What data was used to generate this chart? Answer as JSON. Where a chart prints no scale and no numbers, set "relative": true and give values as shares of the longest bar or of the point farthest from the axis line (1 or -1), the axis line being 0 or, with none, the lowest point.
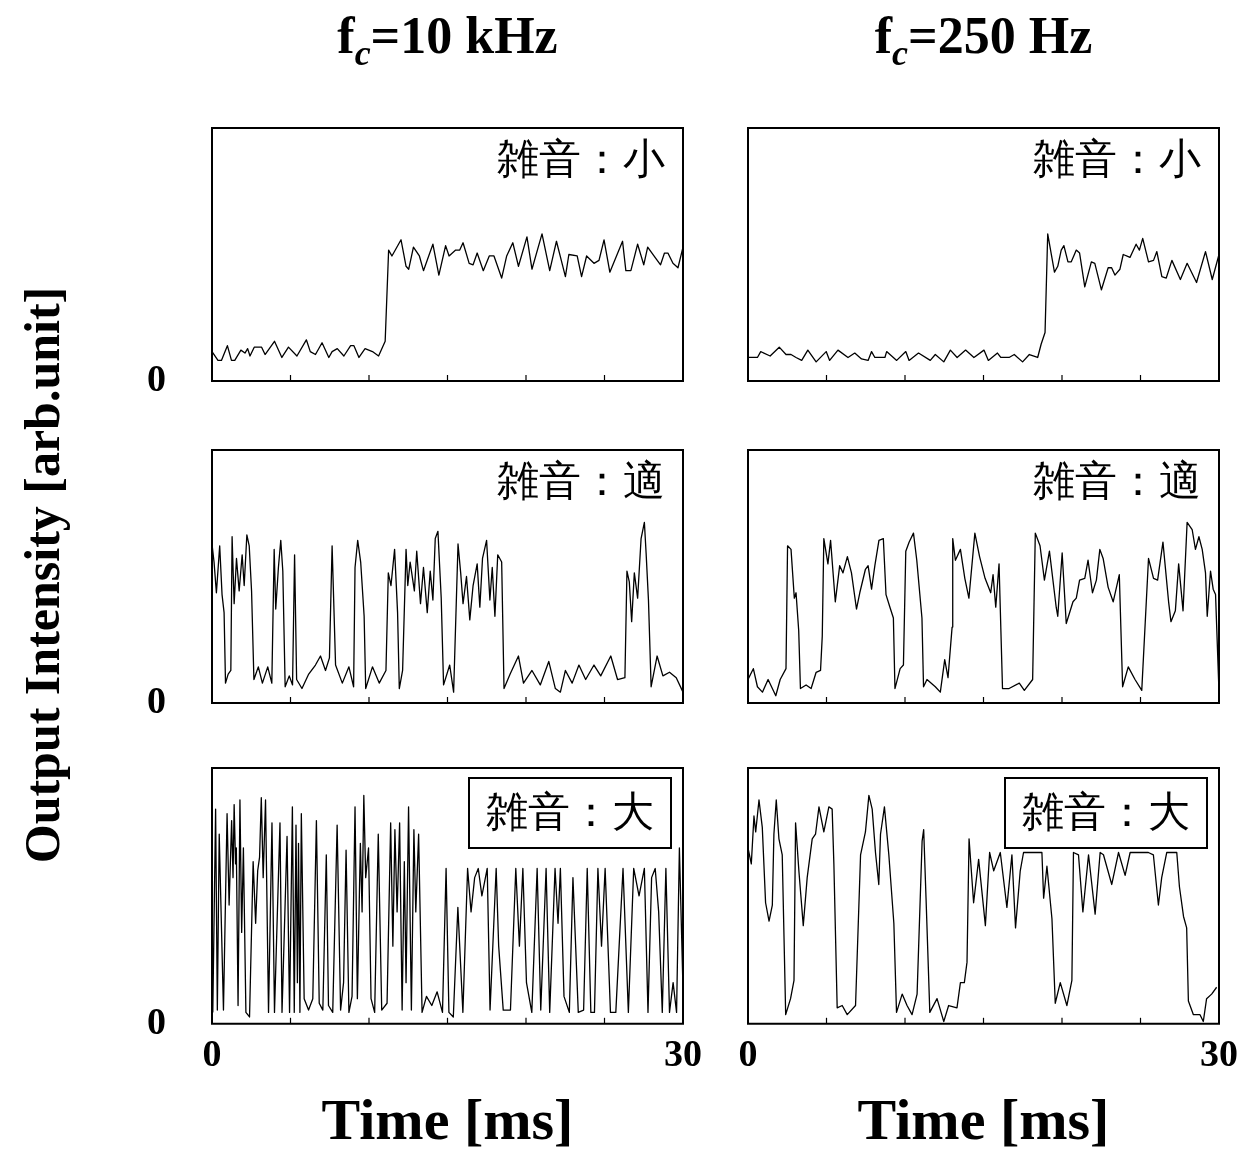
{
  "chart_data": [
    {
      "type": "line",
      "title": "f$_{c}$=10 kHz",
      "relative": true,
      "color": "#000000",
      "annotations": [
        "雑音：小",
        "0"
      ],
      "xlim": [
        0,
        30
      ],
      "xticks": [
        {
          "value": 5,
          "label": null
        },
        {
          "value": 10,
          "label": null
        },
        {
          "value": 15,
          "label": null
        },
        {
          "value": 20,
          "label": null
        },
        {
          "value": 25,
          "label": null
        }
      ],
      "tick_labels": false,
      "x": [
        0,
        0.38,
        0.6,
        0.98,
        1.24,
        1.45,
        1.84,
        2.1,
        2.27,
        2.42,
        2.69,
        3.16,
        3.38,
        3.98,
        4.45,
        4.87,
        5.41,
        6.01,
        6.26,
        6.59,
        7.01,
        7.44,
        7.65,
        7.98,
        8.4,
        8.83,
        9.04,
        9.36,
        9.75,
        10.22,
        10.61,
        11.03,
        11.25,
        11.46,
        12.04,
        12.36,
        12.53,
        12.83,
        13.21,
        13.47,
        14.07,
        14.45,
        14.88,
        15.1,
        15.52,
        15.78,
        15.99,
        16.38,
        16.63,
        16.89,
        17.28,
        17.66,
        17.96,
        18.45,
        18.77,
        19.16,
        19.52,
        20.06,
        20.38,
        21.02,
        21.51,
        21.94,
        22.51,
        22.73,
        23.26,
        23.54,
        23.86,
        24.33,
        24.65,
        24.97,
        25.34,
        26.15,
        26.36,
        26.68,
        27.11,
        27.5,
        27.75,
        28.29,
        28.57,
        28.82,
        29.04,
        29.36,
        29.68,
        30
      ],
      "values": [
        0.2,
        0.14,
        0.14,
        0.24,
        0.14,
        0.14,
        0.21,
        0.19,
        0.22,
        0.17,
        0.23,
        0.23,
        0.18,
        0.27,
        0.16,
        0.23,
        0.17,
        0.28,
        0.2,
        0.18,
        0.26,
        0.16,
        0.2,
        0.22,
        0.17,
        0.24,
        0.24,
        0.16,
        0.22,
        0.2,
        0.17,
        0.27,
        0.89,
        0.85,
        0.96,
        0.78,
        0.76,
        0.91,
        0.85,
        0.75,
        0.93,
        0.72,
        0.92,
        0.85,
        0.89,
        0.89,
        0.94,
        0.8,
        0.79,
        0.87,
        0.75,
        0.85,
        0.85,
        0.7,
        0.85,
        0.94,
        0.78,
        0.98,
        0.76,
        1,
        0.75,
        0.95,
        0.71,
        0.86,
        0.85,
        0.71,
        0.85,
        0.8,
        0.82,
        0.96,
        0.74,
        0.95,
        0.75,
        0.75,
        0.93,
        0.79,
        0.91,
        0.83,
        0.79,
        0.87,
        0.87,
        0.8,
        0.77,
        0.91
      ]
    },
    {
      "type": "line",
      "title": "f$_{c}$=250 Hz",
      "relative": true,
      "color": "#000000",
      "annotations": [
        "雑音：小"
      ],
      "xlim": [
        0,
        30
      ],
      "xticks": [
        {
          "value": 5,
          "label": null
        },
        {
          "value": 10,
          "label": null
        },
        {
          "value": 15,
          "label": null
        },
        {
          "value": 20,
          "label": null
        },
        {
          "value": 25,
          "label": null
        }
      ],
      "tick_labels": false,
      "x": [
        0,
        0.38,
        0.6,
        0.81,
        1.41,
        1.99,
        2.42,
        2.74,
        3.06,
        3.42,
        3.81,
        4.34,
        4.98,
        5.2,
        5.73,
        6.37,
        6.8,
        7.23,
        7.65,
        7.87,
        8.08,
        8.72,
        8.83,
        9.47,
        10.05,
        10.26,
        10.86,
        11.61,
        11.93,
        12.47,
        12.89,
        13.32,
        13.86,
        14.39,
        15.03,
        15.31,
        15.89,
        16.1,
        16.63,
        16.96,
        17.49,
        17.92,
        18.45,
        18.67,
        18.92,
        19.09,
        19.52,
        19.73,
        19.95,
        20.12,
        20.38,
        20.59,
        20.91,
        21.12,
        21.45,
        21.87,
        22.09,
        22.51,
        22.94,
        23.16,
        23.37,
        23.69,
        23.9,
        24.33,
        24.72,
        24.93,
        25.14,
        25.51,
        25.83,
        26.04,
        26.36,
        26.64,
        27.0,
        27.54,
        27.97,
        28.57,
        29.14,
        29.57,
        30
      ],
      "values": [
        0.16,
        0.16,
        0.16,
        0.2,
        0.17,
        0.23,
        0.18,
        0.18,
        0.16,
        0.14,
        0.21,
        0.13,
        0.2,
        0.14,
        0.21,
        0.16,
        0.19,
        0.15,
        0.14,
        0.2,
        0.16,
        0.16,
        0.2,
        0.14,
        0.2,
        0.14,
        0.19,
        0.14,
        0.18,
        0.13,
        0.21,
        0.16,
        0.21,
        0.16,
        0.21,
        0.14,
        0.19,
        0.16,
        0.16,
        0.18,
        0.13,
        0.18,
        0.16,
        0.25,
        0.33,
        1,
        0.74,
        0.78,
        0.89,
        0.92,
        0.81,
        0.81,
        0.89,
        0.87,
        0.64,
        0.81,
        0.8,
        0.62,
        0.77,
        0.77,
        0.72,
        0.76,
        0.86,
        0.84,
        0.93,
        0.89,
        0.97,
        0.81,
        0.82,
        0.88,
        0.71,
        0.7,
        0.82,
        0.69,
        0.8,
        0.67,
        0.88,
        0.69,
        0.86
      ]
    },
    {
      "type": "line",
      "relative": true,
      "ylabel": "Output Intensity [arb.unit]",
      "color": "#000000",
      "annotations": [
        "雑音：適",
        "0"
      ],
      "xlim": [
        0,
        30
      ],
      "xticks": [
        {
          "value": 5,
          "label": null
        },
        {
          "value": 10,
          "label": null
        },
        {
          "value": 15,
          "label": null
        },
        {
          "value": 20,
          "label": null
        },
        {
          "value": 25,
          "label": null
        }
      ],
      "tick_labels": false,
      "x": [
        0,
        0.13,
        0.28,
        0.49,
        0.64,
        0.77,
        0.86,
        1.03,
        1.2,
        1.28,
        1.41,
        1.56,
        1.73,
        1.92,
        2.05,
        2.22,
        2.37,
        2.52,
        2.67,
        2.95,
        3.21,
        3.55,
        3.81,
        3.96,
        4.06,
        4.23,
        4.38,
        4.51,
        4.66,
        4.92,
        5.13,
        5.26,
        5.39,
        5.73,
        6.16,
        6.59,
        6.91,
        7.23,
        7.48,
        7.65,
        7.87,
        8.3,
        8.72,
        9.02,
        9.11,
        9.28,
        9.47,
        9.69,
        9.79,
        10.22,
        10.65,
        11.08,
        11.23,
        11.4,
        11.63,
        11.82,
        11.93,
        12.14,
        12.36,
        12.47,
        12.62,
        12.89,
        13.04,
        13.28,
        13.47,
        13.71,
        13.9,
        14.07,
        14.22,
        14.39,
        14.6,
        14.75,
        15.14,
        15.39,
        15.67,
        15.84,
        15.99,
        16.21,
        16.42,
        16.63,
        16.89,
        17.06,
        17.23,
        17.49,
        17.7,
        17.85,
        18.02,
        18.2,
        18.45,
        18.6,
        18.99,
        19.52,
        19.84,
        20.38,
        20.91,
        21.45,
        21.87,
        22.19,
        22.51,
        22.94,
        23.37,
        23.8,
        24.33,
        24.76,
        25.4,
        25.83,
        26.3,
        26.43,
        26.58,
        26.73,
        26.9,
        27.11,
        27.33,
        27.54,
        27.65,
        27.8,
        27.97,
        28.35,
        28.72,
        29.14,
        29.57,
        30
      ],
      "values": [
        0.88,
        0.78,
        0.61,
        0.87,
        0.6,
        0.5,
        0.11,
        0.16,
        0.18,
        0.92,
        0.55,
        0.8,
        0.62,
        0.82,
        0.65,
        0.93,
        0.87,
        0.62,
        0.13,
        0.2,
        0.11,
        0.2,
        0.11,
        0.85,
        0.52,
        0.75,
        0.9,
        0.73,
        0.09,
        0.15,
        0.1,
        0.82,
        0.13,
        0.08,
        0.16,
        0.21,
        0.26,
        0.18,
        0.25,
        0.87,
        0.21,
        0.11,
        0.2,
        0.09,
        0.75,
        0.9,
        0.78,
        0.48,
        0.08,
        0.2,
        0.11,
        0.18,
        0.72,
        0.65,
        0.85,
        0.5,
        0.08,
        0.18,
        0.85,
        0.65,
        0.78,
        0.62,
        0.84,
        0.55,
        0.75,
        0.5,
        0.73,
        0.57,
        0.91,
        0.95,
        0.58,
        0.1,
        0.21,
        0.06,
        0.88,
        0.72,
        0.55,
        0.7,
        0.46,
        0.65,
        0.77,
        0.53,
        0.8,
        0.9,
        0.57,
        0.75,
        0.48,
        0.82,
        0.78,
        0.08,
        0.16,
        0.26,
        0.11,
        0.18,
        0.1,
        0.23,
        0.08,
        0.06,
        0.18,
        0.11,
        0.21,
        0.13,
        0.21,
        0.15,
        0.26,
        0.13,
        0.14,
        0.73,
        0.67,
        0.45,
        0.72,
        0.58,
        0.91,
        1,
        0.83,
        0.57,
        0.09,
        0.26,
        0.15,
        0.17,
        0.14,
        0.06
      ]
    },
    {
      "type": "line",
      "relative": true,
      "color": "#000000",
      "annotations": [
        "雑音：適"
      ],
      "xlim": [
        0,
        30
      ],
      "xticks": [
        {
          "value": 5,
          "label": null
        },
        {
          "value": 10,
          "label": null
        },
        {
          "value": 15,
          "label": null
        },
        {
          "value": 20,
          "label": null
        },
        {
          "value": 25,
          "label": null
        }
      ],
      "tick_labels": false,
      "x": [
        0,
        0.34,
        0.6,
        0.92,
        1.28,
        1.77,
        2.05,
        2.42,
        2.52,
        2.74,
        2.95,
        3.06,
        3.23,
        3.34,
        3.7,
        4.02,
        4.34,
        4.62,
        4.73,
        4.83,
        5.09,
        5.26,
        5.56,
        5.84,
        6.05,
        6.33,
        6.59,
        6.91,
        7.12,
        7.48,
        7.65,
        7.87,
        8.08,
        8.34,
        8.62,
        8.79,
        9.04,
        9.26,
        9.36,
        9.69,
        9.9,
        10.05,
        10.26,
        10.54,
        10.75,
        11.08,
        11.18,
        11.4,
        11.93,
        12.25,
        12.53,
        12.74,
        13.0,
        13.04,
        13.21,
        13.53,
        13.81,
        14.07,
        14.45,
        14.75,
        15.1,
        15.46,
        15.61,
        15.78,
        15.99,
        16.21,
        16.63,
        17.28,
        17.6,
        18.13,
        18.3,
        18.6,
        18.88,
        19.2,
        19.63,
        19.73,
        20.01,
        20.27,
        20.7,
        20.91,
        21.12,
        21.45,
        21.66,
        21.94,
        22.19,
        22.41,
        22.62,
        22.94,
        23.26,
        23.65,
        23.86,
        24.22,
        24.65,
        25.08,
        25.51,
        25.83,
        26.09,
        26.43,
        26.79,
        26.94,
        27.22,
        27.43,
        27.71,
        27.97,
        28.29,
        28.5,
        28.72,
        28.93,
        29.14,
        29.25,
        29.46,
        29.63,
        29.78,
        30
      ],
      "values": [
        0.13,
        0.19,
        0.09,
        0.06,
        0.13,
        0.04,
        0.13,
        0.19,
        0.87,
        0.85,
        0.58,
        0.61,
        0.4,
        0.08,
        0.1,
        0.08,
        0.17,
        0.18,
        0.37,
        0.91,
        0.77,
        0.9,
        0.56,
        0.76,
        0.72,
        0.81,
        0.72,
        0.52,
        0.61,
        0.74,
        0.76,
        0.63,
        0.76,
        0.9,
        0.91,
        0.6,
        0.53,
        0.47,
        0.08,
        0.19,
        0.21,
        0.84,
        0.89,
        0.94,
        0.79,
        0.47,
        0.09,
        0.13,
        0.09,
        0.06,
        0.24,
        0.14,
        0.42,
        0.91,
        0.79,
        0.85,
        0.69,
        0.58,
        0.94,
        0.81,
        0.69,
        0.61,
        0.71,
        0.53,
        0.77,
        0.08,
        0.08,
        0.11,
        0.07,
        0.13,
        0.94,
        0.87,
        0.68,
        0.84,
        0.53,
        0.48,
        0.83,
        0.44,
        0.56,
        0.58,
        0.68,
        0.69,
        0.79,
        0.61,
        0.68,
        0.85,
        0.8,
        0.64,
        0.56,
        0.71,
        0.09,
        0.2,
        0.13,
        0.07,
        0.8,
        0.69,
        0.68,
        0.89,
        0.56,
        0.45,
        0.51,
        0.77,
        0.51,
        1,
        0.96,
        0.85,
        0.92,
        0.85,
        0.72,
        0.48,
        0.73,
        0.63,
        0.6,
        0.06
      ]
    },
    {
      "type": "line",
      "relative": true,
      "xlabel": "Time [ms]",
      "color": "#000000",
      "annotations": [
        "雑音：大",
        "0"
      ],
      "xlim": [
        0,
        30
      ],
      "xticks": [
        {
          "value": 0,
          "label": "0"
        },
        {
          "value": 5,
          "label": null
        },
        {
          "value": 10,
          "label": null
        },
        {
          "value": 15,
          "label": null
        },
        {
          "value": 20,
          "label": null
        },
        {
          "value": 25,
          "label": null
        },
        {
          "value": 30,
          "label": "30"
        }
      ],
      "tick_labels": "x",
      "x": [
        0.05,
        0.23,
        0.34,
        0.46,
        0.73,
        0.96,
        1.09,
        1.25,
        1.34,
        1.41,
        1.5,
        1.55,
        1.66,
        1.78,
        1.89,
        2.0,
        2.16,
        2.39,
        2.62,
        2.78,
        2.91,
        3.03,
        3.14,
        3.26,
        3.41,
        3.6,
        3.82,
        3.98,
        4.33,
        4.46,
        4.78,
        4.94,
        5.12,
        5.24,
        5.35,
        5.44,
        5.51,
        5.6,
        5.69,
        5.87,
        6.15,
        6.42,
        6.65,
        6.83,
        7.06,
        7.28,
        7.42,
        7.69,
        7.97,
        8.19,
        8.38,
        8.54,
        8.72,
        8.92,
        9.11,
        9.26,
        9.45,
        9.56,
        9.67,
        9.79,
        9.97,
        10.13,
        10.36,
        10.59,
        10.81,
        11.15,
        11.38,
        11.52,
        11.65,
        11.79,
        11.95,
        12.11,
        12.25,
        12.36,
        12.52,
        12.7,
        12.86,
        12.98,
        13.16,
        13.38,
        13.66,
        14.0,
        14.34,
        14.68,
        14.91,
        15.09,
        15.37,
        15.66,
        15.98,
        16.28,
        16.5,
        16.73,
        16.96,
        17.19,
        17.53,
        17.71,
        18.1,
        18.26,
        18.55,
        19.01,
        19.35,
        19.58,
        19.8,
        20.03,
        20.37,
        20.71,
        20.94,
        21.28,
        21.51,
        21.85,
        22.04,
        22.19,
        22.42,
        22.76,
        22.99,
        23.33,
        23.67,
        23.9,
        24.13,
        24.36,
        24.58,
        24.81,
        25.04,
        25.38,
        25.72,
        26.18,
        26.52,
        26.86,
        27.2,
        27.54,
        27.77,
        28.0,
        28.23,
        28.45,
        28.68,
        28.91,
        29.14,
        29.37,
        29.59,
        29.77,
        30
      ],
      "values": [
        0.05,
        0.94,
        0.06,
        0.83,
        0.06,
        0.92,
        0.52,
        0.89,
        0.64,
        0.96,
        0.7,
        0.77,
        0.08,
        0.98,
        0.4,
        0.77,
        0.05,
        0.03,
        0.71,
        0.44,
        0.67,
        0.73,
        0.99,
        0.64,
        0.98,
        0.05,
        0.88,
        0.05,
        0.88,
        0.05,
        0.82,
        0.05,
        0.95,
        0.05,
        0.87,
        0.18,
        0.79,
        0.05,
        0.92,
        0.11,
        0.06,
        0.11,
        0.89,
        0.09,
        0.06,
        0.74,
        0.08,
        0.05,
        0.87,
        0.06,
        0.18,
        0.76,
        0.05,
        0.12,
        0.95,
        0.11,
        0.79,
        0.49,
        1,
        0.64,
        0.77,
        0.11,
        0.05,
        0.83,
        0.06,
        0.09,
        0.88,
        0.34,
        0.85,
        0.49,
        0.88,
        0.06,
        0.71,
        0.18,
        0.95,
        0.06,
        0.85,
        0.49,
        0.83,
        0.05,
        0.12,
        0.08,
        0.14,
        0.05,
        0.68,
        0.05,
        0.03,
        0.51,
        0.05,
        0.68,
        0.49,
        0.64,
        0.68,
        0.56,
        0.68,
        0.06,
        0.68,
        0.34,
        0.06,
        0.06,
        0.68,
        0.34,
        0.68,
        0.18,
        0.05,
        0.68,
        0.06,
        0.68,
        0.05,
        0.68,
        0.44,
        0.68,
        0.12,
        0.05,
        0.64,
        0.05,
        0.06,
        0.68,
        0.05,
        0.05,
        0.68,
        0.34,
        0.68,
        0.05,
        0.05,
        0.68,
        0.05,
        0.68,
        0.56,
        0.68,
        0.05,
        0.64,
        0.68,
        0.49,
        0.05,
        0.68,
        0.05,
        0.18,
        0.05,
        0.77,
        0.15
      ]
    },
    {
      "type": "line",
      "relative": true,
      "xlabel": "Time [ms]",
      "color": "#000000",
      "annotations": [
        "雑音：大"
      ],
      "xlim": [
        0,
        30
      ],
      "xticks": [
        {
          "value": 0,
          "label": "0"
        },
        {
          "value": 5,
          "label": null
        },
        {
          "value": 10,
          "label": null
        },
        {
          "value": 15,
          "label": null
        },
        {
          "value": 20,
          "label": null
        },
        {
          "value": 25,
          "label": null
        },
        {
          "value": 30,
          "label": "30"
        }
      ],
      "tick_labels": "x",
      "x": [
        0,
        0.21,
        0.38,
        0.49,
        0.7,
        0.91,
        1.12,
        1.34,
        1.55,
        1.65,
        1.8,
        1.97,
        2.18,
        2.4,
        2.71,
        2.93,
        3.03,
        3.24,
        3.52,
        3.77,
        4.09,
        4.3,
        4.52,
        4.83,
        5.15,
        5.36,
        5.47,
        5.68,
        6.0,
        6.32,
        6.85,
        7.17,
        7.48,
        7.7,
        7.91,
        8.12,
        8.33,
        8.44,
        8.69,
        8.97,
        9.29,
        9.46,
        9.82,
        10.13,
        10.45,
        10.77,
        11.09,
        11.19,
        11.34,
        11.58,
        12.04,
        12.47,
        12.78,
        13.31,
        13.53,
        13.78,
        13.95,
        14.08,
        14.37,
        14.69,
        15.12,
        15.39,
        15.65,
        16.07,
        16.49,
        16.81,
        17.04,
        17.34,
        17.55,
        18.72,
        18.83,
        19.04,
        19.36,
        19.57,
        19.89,
        20.31,
        20.63,
        20.73,
        21.05,
        21.33,
        21.69,
        22.11,
        22.43,
        22.64,
        23.17,
        23.6,
        24.02,
        24.34,
        25.5,
        25.82,
        26.14,
        26.35,
        26.67,
        27.31,
        27.48,
        27.74,
        27.94,
        28.05,
        28.37,
        28.79,
        29.0,
        29.21,
        29.53,
        29.85
      ],
      "values": [
        0.77,
        0.7,
        0.91,
        0.84,
        0.98,
        0.86,
        0.53,
        0.45,
        0.52,
        0.83,
        0.98,
        0.81,
        0.74,
        0.04,
        0.11,
        0.19,
        0.88,
        0.67,
        0.43,
        0.64,
        0.81,
        0.83,
        0.95,
        0.84,
        0.95,
        0.94,
        0.7,
        0.07,
        0.08,
        0.04,
        0.08,
        0.74,
        0.84,
        1,
        0.94,
        0.75,
        0.61,
        0.83,
        0.95,
        0.74,
        0.44,
        0.05,
        0.13,
        0.08,
        0.04,
        0.13,
        0.8,
        0.85,
        0.55,
        0.05,
        0.11,
        0.01,
        0.08,
        0.07,
        0.18,
        0.18,
        0.27,
        0.81,
        0.53,
        0.72,
        0.43,
        0.75,
        0.67,
        0.75,
        0.51,
        0.74,
        0.42,
        0.67,
        0.75,
        0.75,
        0.55,
        0.69,
        0.46,
        0.09,
        0.18,
        0.08,
        0.19,
        0.75,
        0.74,
        0.49,
        0.74,
        0.48,
        0.75,
        0.74,
        0.61,
        0.75,
        0.65,
        0.75,
        0.75,
        0.74,
        0.52,
        0.64,
        0.75,
        0.75,
        0.6,
        0.47,
        0.42,
        0.1,
        0.04,
        0.04,
        0.01,
        0.11,
        0.13,
        0.16
      ]
    }
  ]
}
